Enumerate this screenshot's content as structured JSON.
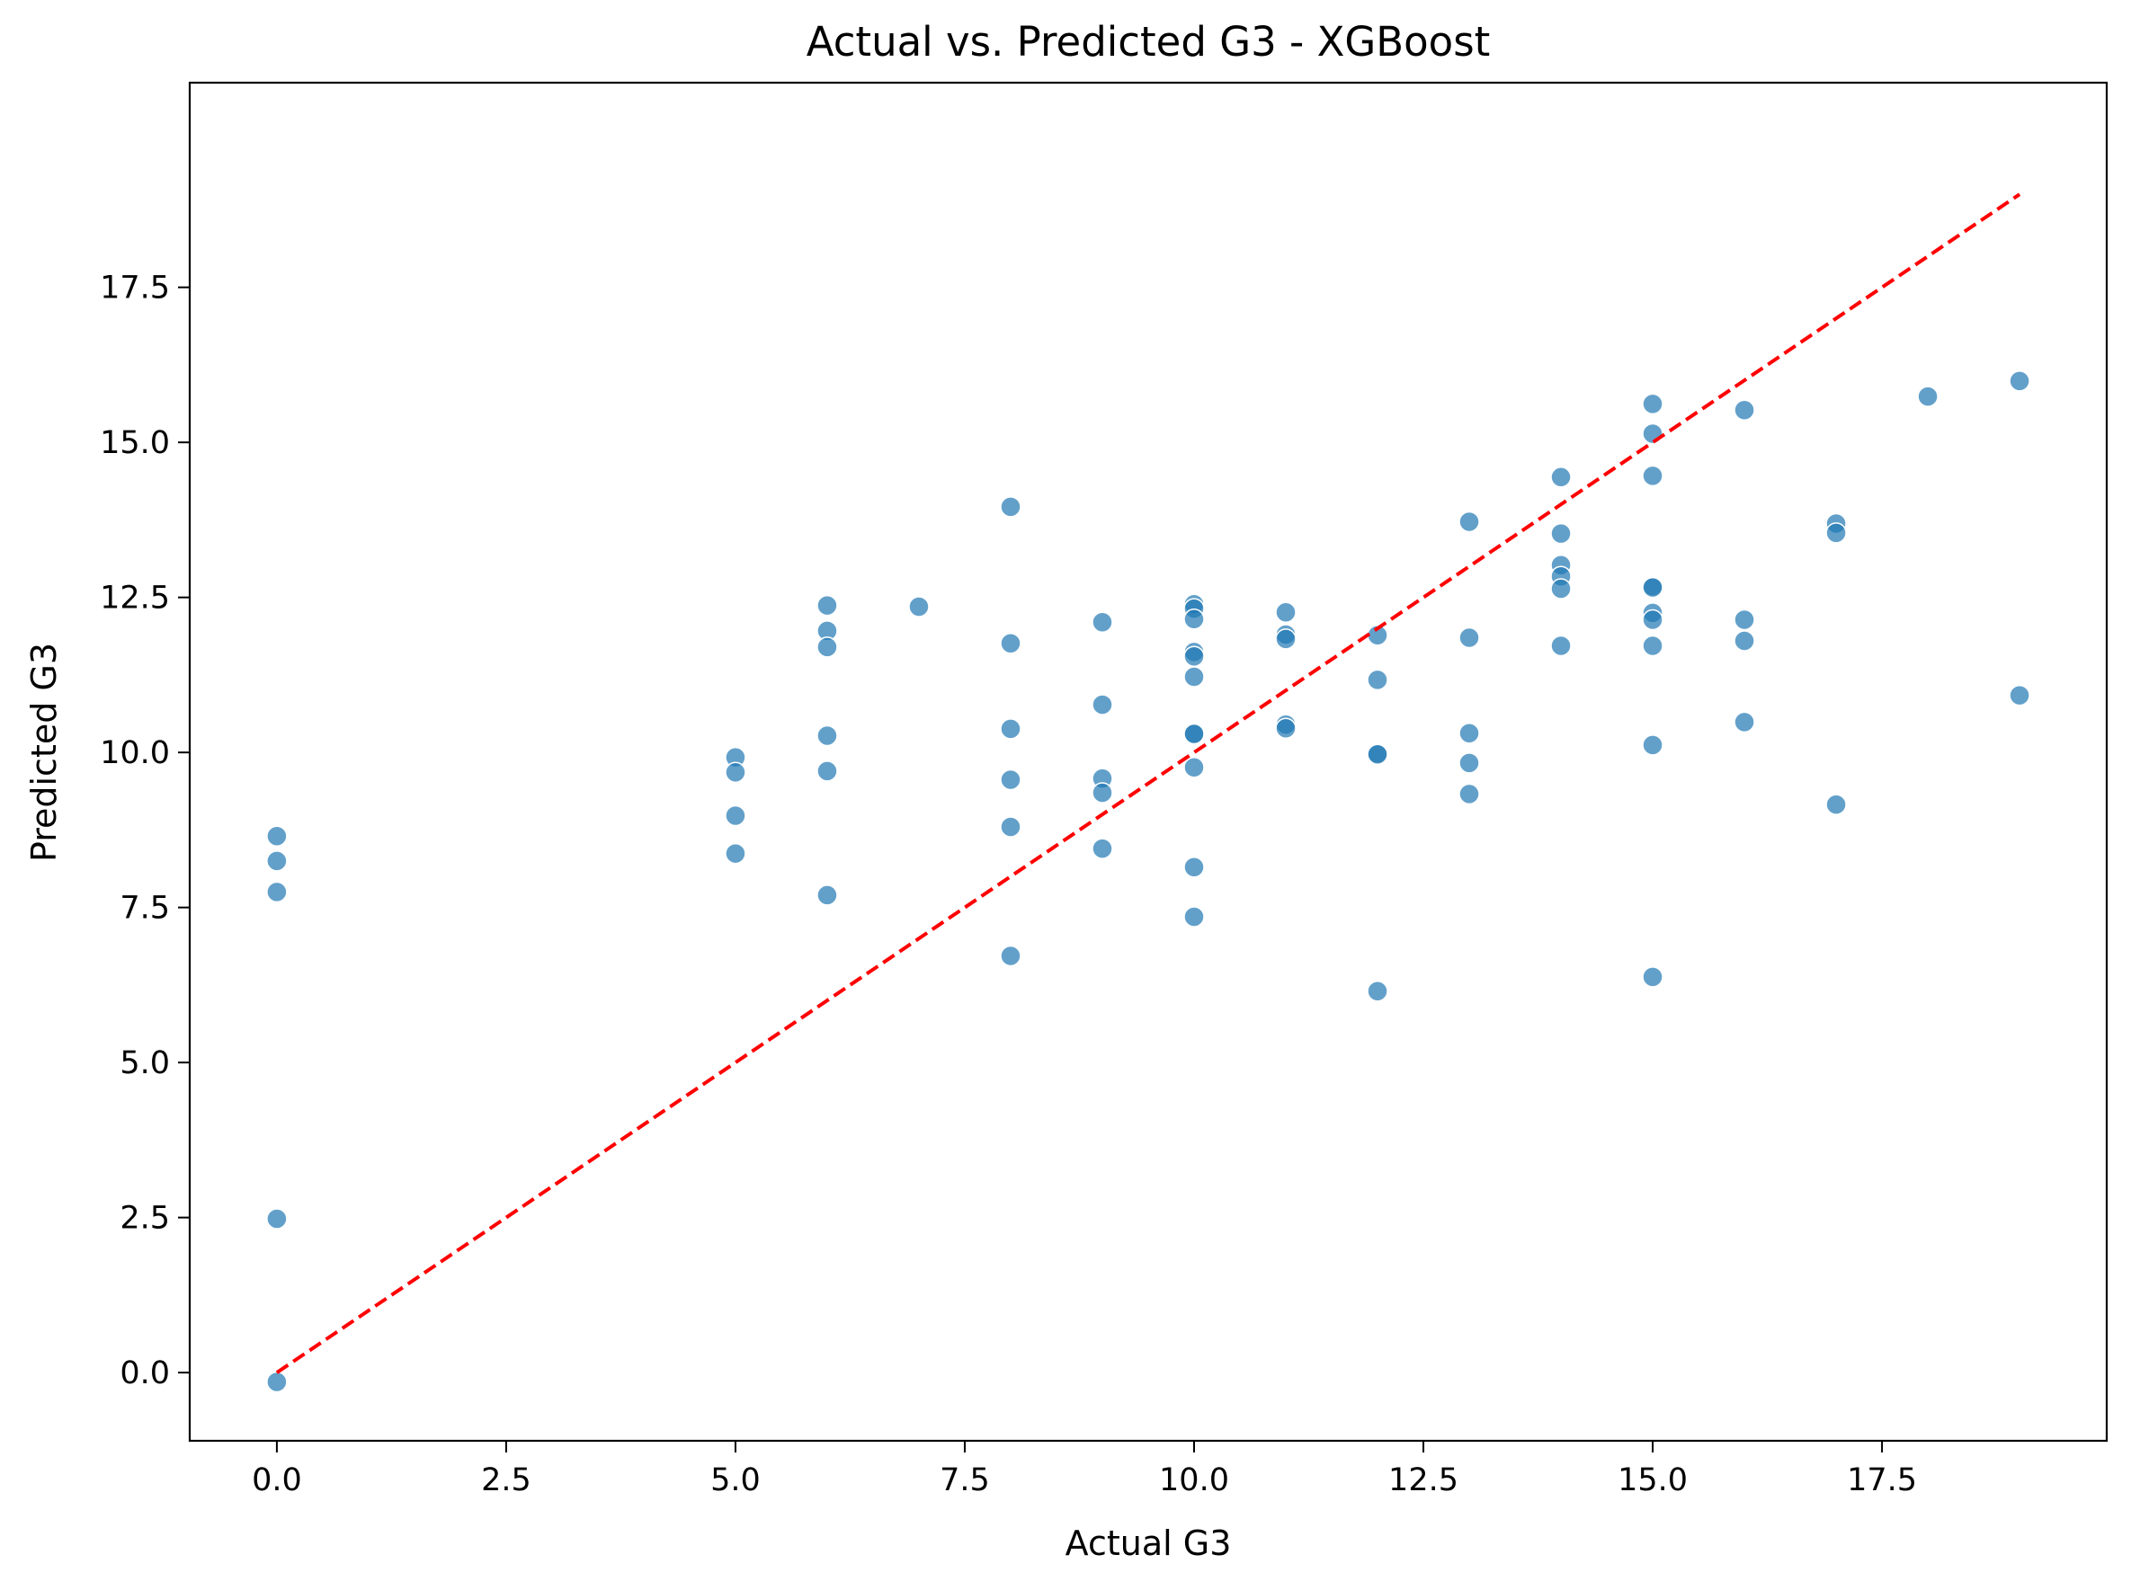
{
  "chart_data": {
    "type": "scatter",
    "title": "Actual vs. Predicted G3 - XGBoost",
    "xlabel": "Actual G3",
    "ylabel": "Predicted G3",
    "xlim": [
      -0.95,
      19.95
    ],
    "ylim": [
      -1.1,
      20.8
    ],
    "xticks": [
      0.0,
      2.5,
      5.0,
      7.5,
      10.0,
      12.5,
      15.0,
      17.5
    ],
    "xtick_labels": [
      "0.0",
      "2.5",
      "5.0",
      "7.5",
      "10.0",
      "12.5",
      "15.0",
      "17.5"
    ],
    "yticks": [
      0.0,
      2.5,
      5.0,
      7.5,
      10.0,
      12.5,
      15.0,
      17.5
    ],
    "ytick_labels": [
      "0.0",
      "2.5",
      "5.0",
      "7.5",
      "10.0",
      "12.5",
      "15.0",
      "17.5"
    ],
    "grid": false,
    "point_color": "#1f77b4",
    "point_edge_color": "#ffffff",
    "point_alpha": 0.7,
    "reference_line": {
      "x": [
        0,
        19
      ],
      "y": [
        0,
        19
      ],
      "color": "#ff0000",
      "style": "dashed"
    },
    "points": [
      [
        0,
        8.65
      ],
      [
        0,
        8.25
      ],
      [
        0,
        7.75
      ],
      [
        0,
        2.48
      ],
      [
        0,
        -0.15
      ],
      [
        5,
        9.92
      ],
      [
        5,
        9.68
      ],
      [
        5,
        8.98
      ],
      [
        5,
        8.37
      ],
      [
        6,
        12.37
      ],
      [
        6,
        11.96
      ],
      [
        6,
        11.7
      ],
      [
        6,
        10.27
      ],
      [
        6,
        9.7
      ],
      [
        6,
        7.7
      ],
      [
        7,
        12.35
      ],
      [
        8,
        13.96
      ],
      [
        8,
        11.76
      ],
      [
        8,
        10.38
      ],
      [
        8,
        9.56
      ],
      [
        8,
        8.8
      ],
      [
        8,
        6.72
      ],
      [
        9,
        12.1
      ],
      [
        9,
        10.77
      ],
      [
        9,
        9.58
      ],
      [
        9,
        9.35
      ],
      [
        9,
        8.45
      ],
      [
        10,
        12.39
      ],
      [
        10,
        12.32
      ],
      [
        10,
        12.15
      ],
      [
        10,
        11.62
      ],
      [
        10,
        11.55
      ],
      [
        10,
        11.22
      ],
      [
        10,
        10.3
      ],
      [
        10,
        10.3
      ],
      [
        10,
        9.76
      ],
      [
        10,
        8.15
      ],
      [
        10,
        7.35
      ],
      [
        11,
        12.26
      ],
      [
        11,
        11.9
      ],
      [
        11,
        11.83
      ],
      [
        11,
        10.45
      ],
      [
        11,
        10.39
      ],
      [
        12,
        11.89
      ],
      [
        12,
        11.17
      ],
      [
        12,
        9.98
      ],
      [
        12,
        9.97
      ],
      [
        12,
        6.15
      ],
      [
        13,
        13.72
      ],
      [
        13,
        11.85
      ],
      [
        13,
        10.31
      ],
      [
        13,
        9.83
      ],
      [
        13,
        9.33
      ],
      [
        14,
        14.44
      ],
      [
        14,
        13.53
      ],
      [
        14,
        13.02
      ],
      [
        14,
        12.84
      ],
      [
        14,
        12.64
      ],
      [
        14,
        11.72
      ],
      [
        15,
        15.62
      ],
      [
        15,
        15.14
      ],
      [
        15,
        14.46
      ],
      [
        15,
        12.68
      ],
      [
        15,
        12.66
      ],
      [
        15,
        12.25
      ],
      [
        15,
        12.14
      ],
      [
        15,
        11.72
      ],
      [
        15,
        10.12
      ],
      [
        15,
        6.38
      ],
      [
        16,
        15.52
      ],
      [
        16,
        12.14
      ],
      [
        16,
        11.8
      ],
      [
        16,
        10.49
      ],
      [
        17,
        13.69
      ],
      [
        17,
        13.54
      ],
      [
        17,
        9.16
      ],
      [
        18,
        15.74
      ],
      [
        19,
        15.99
      ],
      [
        19,
        10.92
      ]
    ]
  }
}
